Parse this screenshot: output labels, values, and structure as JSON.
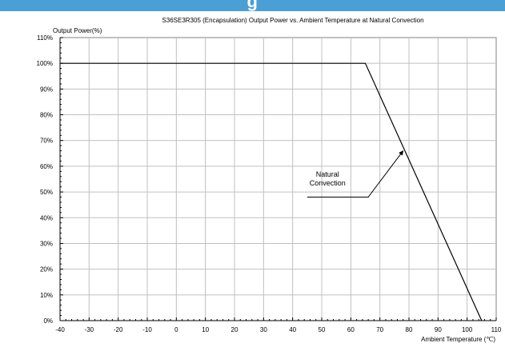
{
  "header": {
    "banner_text": "g"
  },
  "chart_data": {
    "type": "line",
    "title": "S36SE3R305 (Encapsulation)  Output Power vs. Ambient Temperature at Natural Convection",
    "ylabel": "Output Power(%)",
    "xlabel": "Ambient Temperature (℃)",
    "xlim": [
      -40,
      110
    ],
    "ylim": [
      0,
      110
    ],
    "x_ticks": [
      -40,
      -30,
      -20,
      -10,
      0,
      10,
      20,
      30,
      40,
      50,
      60,
      70,
      80,
      90,
      100,
      110
    ],
    "y_ticks": [
      0,
      10,
      20,
      30,
      40,
      50,
      60,
      70,
      80,
      90,
      100,
      110
    ],
    "y_tick_labels": [
      "0%",
      "10%",
      "20%",
      "30%",
      "40%",
      "50%",
      "60%",
      "70%",
      "80%",
      "90%",
      "100%",
      "110%"
    ],
    "grid": true,
    "series": [
      {
        "name": "",
        "x": [
          -40,
          65,
          105
        ],
        "y": [
          100,
          100,
          0
        ],
        "color": "#000000"
      }
    ],
    "annotations": [
      {
        "text": "Natural\nConvection",
        "label_pos": [
          52,
          56
        ],
        "line": [
          [
            45,
            48
          ],
          [
            66,
            48
          ],
          [
            78,
            66
          ]
        ]
      }
    ]
  }
}
